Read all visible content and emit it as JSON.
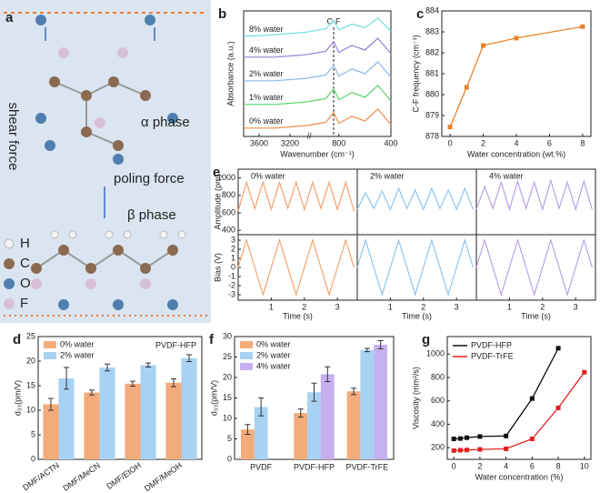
{
  "diagram_a": {
    "label": "a",
    "texts": [
      "shear force",
      "α phase",
      "poling force",
      "β phase"
    ],
    "legend": [
      "H",
      "C",
      "O",
      "F"
    ]
  },
  "chart_data": [
    {
      "type": "spectra",
      "panel": "b",
      "xlabel": "Wavenumber (cm⁻¹)",
      "ylabel": "Absorbance (a.u.)",
      "annotation": "C-F",
      "annotation_x": 840,
      "x": [
        3800,
        3600,
        3400,
        3200,
        3000,
        1000,
        900,
        840,
        800,
        700,
        600,
        500,
        400
      ],
      "xlim": [
        3800,
        400
      ],
      "xbreak": [
        3000,
        1000
      ],
      "xticks": [
        3600,
        3200,
        800,
        400
      ],
      "ylim": [
        0,
        1
      ],
      "series": [
        {
          "name": "0% water",
          "color": "#f08a4b",
          "values": [
            0.04,
            0.04,
            0.04,
            0.05,
            0.06,
            0.07,
            0.09,
            0.17,
            0.08,
            0.14,
            0.1,
            0.2,
            0.07
          ]
        },
        {
          "name": "1% water",
          "color": "#5bd16a",
          "values": [
            0.24,
            0.24,
            0.24,
            0.25,
            0.26,
            0.27,
            0.29,
            0.37,
            0.28,
            0.34,
            0.3,
            0.4,
            0.27
          ]
        },
        {
          "name": "2% water",
          "color": "#8ab8e6",
          "values": [
            0.44,
            0.44,
            0.44,
            0.45,
            0.46,
            0.47,
            0.49,
            0.57,
            0.48,
            0.54,
            0.5,
            0.6,
            0.47
          ]
        },
        {
          "name": "4% water",
          "color": "#9a7fd8",
          "values": [
            0.64,
            0.64,
            0.64,
            0.65,
            0.66,
            0.67,
            0.69,
            0.77,
            0.68,
            0.74,
            0.7,
            0.8,
            0.67
          ]
        },
        {
          "name": "8% water",
          "color": "#6fe0e0",
          "values": [
            0.82,
            0.82,
            0.83,
            0.84,
            0.85,
            0.86,
            0.88,
            0.95,
            0.87,
            0.92,
            0.89,
            0.97,
            0.86
          ]
        }
      ]
    },
    {
      "type": "line",
      "panel": "c",
      "xlabel": "Water concentration (wt.%)",
      "ylabel": "C-F frequency (cm⁻¹)",
      "x": [
        0,
        1,
        2,
        4,
        8
      ],
      "values": [
        878.45,
        880.35,
        882.35,
        882.7,
        883.25
      ],
      "color": "#e8822a",
      "xlim": [
        -0.5,
        8.5
      ],
      "xticks": [
        0,
        2,
        4,
        6,
        8
      ],
      "ylim": [
        878,
        884
      ],
      "yticks": [
        878,
        879,
        880,
        881,
        882,
        883,
        884
      ]
    },
    {
      "type": "oscillation",
      "panel": "e",
      "xlabel": "Time (s)",
      "amplitude_label": "Amplitude (pm)",
      "bias_label": "Bias (V)",
      "x": [
        0,
        0.25,
        0.5,
        0.75,
        1,
        1.25,
        1.5,
        1.75,
        2,
        2.25,
        2.5,
        2.75,
        3,
        3.25,
        3.5
      ],
      "xlim": [
        0,
        3.6
      ],
      "xticks": [
        1,
        2,
        3
      ],
      "amplitude_ylim": [
        350,
        1100
      ],
      "amplitude_yticks": [
        400,
        600,
        800,
        1000
      ],
      "bias_ylim": [
        -3.6,
        3.6
      ],
      "bias_yticks": [
        -3,
        -2,
        -1,
        0,
        1,
        2,
        3
      ],
      "groups": [
        {
          "name": "0% water",
          "color": "#f4a36d",
          "amplitude": [
            620,
            950,
            650,
            950,
            640,
            950,
            650,
            950,
            640,
            950,
            650,
            950,
            640,
            950,
            620
          ],
          "bias": [
            0,
            3,
            0,
            -3,
            0,
            3,
            0,
            -3,
            0,
            3,
            0,
            -3,
            0,
            3,
            0
          ]
        },
        {
          "name": "2% water",
          "color": "#8fc4ec",
          "amplitude": [
            640,
            830,
            650,
            850,
            640,
            880,
            650,
            860,
            640,
            880,
            650,
            860,
            640,
            880,
            640
          ],
          "bias": [
            0,
            3,
            0,
            -3,
            0,
            3,
            0,
            -3,
            0,
            3,
            0,
            -3,
            0,
            3,
            0
          ]
        },
        {
          "name": "4% water",
          "color": "#b9a2e6",
          "amplitude": [
            640,
            900,
            650,
            950,
            640,
            960,
            650,
            950,
            640,
            970,
            650,
            950,
            640,
            960,
            640
          ],
          "bias": [
            0,
            3,
            0,
            -3,
            0,
            3,
            0,
            -3,
            0,
            3,
            0,
            -3,
            0,
            3,
            0
          ]
        }
      ]
    },
    {
      "type": "bar",
      "panel": "d",
      "ylabel": "d₃₃(pm/V)",
      "annotation": "PVDF-HFP",
      "categories": [
        "DMF/ACTN",
        "DMF/MeCN",
        "DMF/EtOH",
        "DMF/MeOH"
      ],
      "ylim": [
        0,
        25
      ],
      "yticks": [
        0,
        5,
        10,
        15,
        20,
        25
      ],
      "series": [
        {
          "name": "0% water",
          "color": "#f4ab7b",
          "values": [
            11.2,
            13.6,
            15.4,
            15.6
          ],
          "errors": [
            1.2,
            0.5,
            0.5,
            0.8
          ]
        },
        {
          "name": "2% water",
          "color": "#a8d2f2",
          "values": [
            16.5,
            18.7,
            19.2,
            20.6
          ],
          "errors": [
            2.2,
            0.7,
            0.4,
            0.7
          ]
        }
      ]
    },
    {
      "type": "bar",
      "panel": "f",
      "ylabel": "d₃₃(pm/V)",
      "categories": [
        "PVDF",
        "PVDF-HFP",
        "PVDF-TrFE"
      ],
      "ylim": [
        0,
        30
      ],
      "yticks": [
        0,
        5,
        10,
        15,
        20,
        25,
        30
      ],
      "series": [
        {
          "name": "0% water",
          "color": "#f4ab7b",
          "values": [
            7.3,
            11.3,
            16.6
          ],
          "errors": [
            1.2,
            1,
            0.8
          ]
        },
        {
          "name": "2% water",
          "color": "#a8d2f2",
          "values": [
            12.8,
            16.4,
            26.7
          ],
          "errors": [
            2.2,
            2.2,
            0.4
          ]
        },
        {
          "name": "4% water",
          "color": "#c6b0f0",
          "values": [
            null,
            20.8,
            28
          ],
          "errors": [
            null,
            1.8,
            1
          ]
        }
      ]
    },
    {
      "type": "line",
      "panel": "g",
      "xlabel": "Water concentration (%)",
      "ylabel": "Viscosity (mm²/s)",
      "xlim": [
        -0.5,
        10.5
      ],
      "xticks": [
        0,
        2,
        4,
        6,
        8,
        10
      ],
      "ylim": [
        100,
        1150
      ],
      "yticks": [
        200,
        400,
        600,
        800,
        1000
      ],
      "series": [
        {
          "name": "PVDF-HFP",
          "color": "#111111",
          "x": [
            0,
            0.5,
            1,
            2,
            4,
            6,
            8
          ],
          "values": [
            275,
            278,
            285,
            295,
            300,
            620,
            1050
          ]
        },
        {
          "name": "PVDF-TrFE",
          "color": "#e02020",
          "x": [
            0,
            0.5,
            1,
            2,
            4,
            6,
            8,
            10
          ],
          "values": [
            175,
            178,
            180,
            185,
            190,
            275,
            540,
            845
          ]
        }
      ]
    }
  ]
}
